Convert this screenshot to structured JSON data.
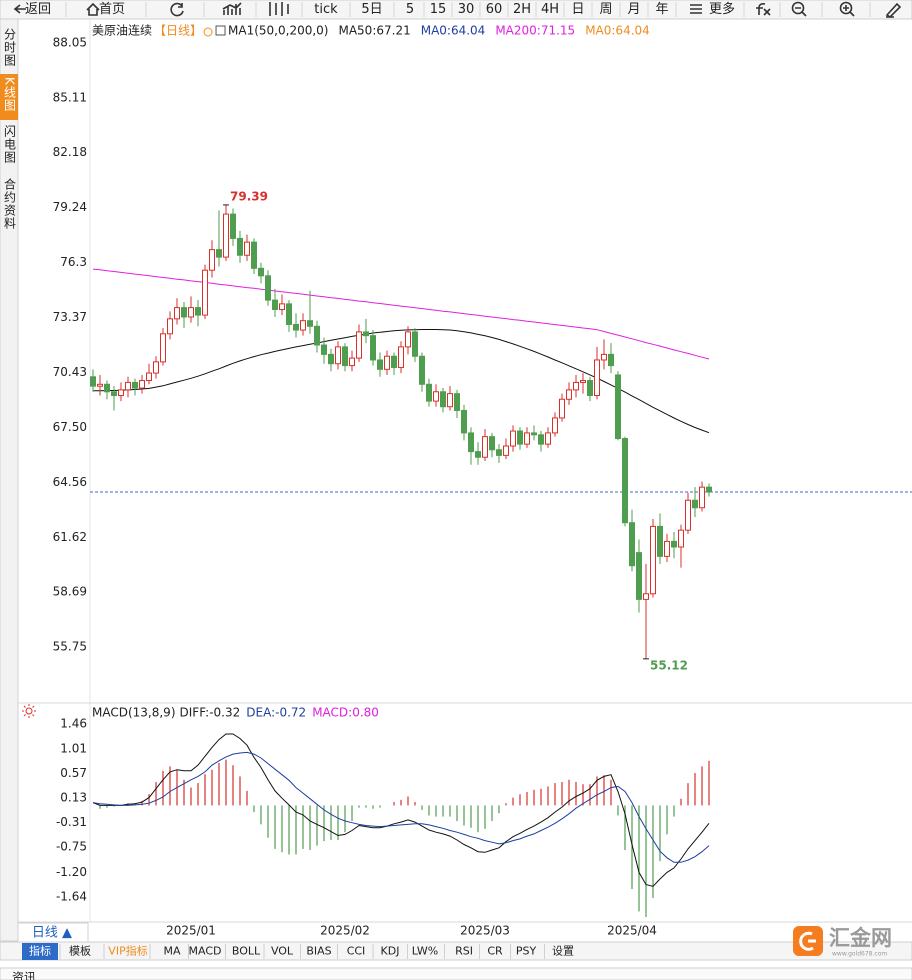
{
  "toolbar": [
    "返回",
    "首页",
    "tick",
    "5日",
    "5",
    "15",
    "30",
    "60",
    "2H",
    "4H",
    "日",
    "周",
    "月",
    "年",
    "更多"
  ],
  "sidebar": [
    "分时图",
    "K线图",
    "闪电图",
    "合约资料"
  ],
  "chart_data": {
    "type": "candlestick",
    "title": "美原油连续",
    "period": "【日线】",
    "legend": [
      {
        "text": "MA1(50,0,200,0)",
        "color": "#222222"
      },
      {
        "text": "MA50:67.21",
        "color": "#222222"
      },
      {
        "text": "MA0:64.04",
        "color": "#1f3fa0"
      },
      {
        "text": "MA200:71.15",
        "color": "#e020e0"
      },
      {
        "text": "MA0:64.04",
        "color": "#f08c1e"
      }
    ],
    "categories": [
      null,
      null,
      null,
      null,
      null,
      null,
      null,
      null,
      null,
      null,
      null,
      null,
      null,
      null,
      "2025/01",
      null,
      null,
      null,
      null,
      null,
      null,
      null,
      null,
      null,
      null,
      null,
      null,
      null,
      null,
      null,
      null,
      null,
      null,
      null,
      null,
      null,
      "2025/02",
      null,
      null,
      null,
      null,
      null,
      null,
      null,
      null,
      null,
      null,
      null,
      null,
      null,
      null,
      null,
      null,
      null,
      null,
      null,
      "2025/03",
      null,
      null,
      null,
      null,
      null,
      null,
      null,
      null,
      null,
      null,
      null,
      null,
      null,
      null,
      null,
      null,
      null,
      null,
      null,
      null,
      "2025/04",
      null,
      null,
      null,
      null,
      null,
      null,
      null,
      null,
      null,
      null,
      null
    ],
    "ohlc": {
      "open": [
        70.2,
        69.7,
        69.8,
        69.4,
        69.2,
        69.5,
        69.9,
        69.6,
        70.0,
        70.4,
        71.0,
        72.5,
        73.3,
        73.9,
        73.4,
        73.9,
        73.5,
        75.9,
        77.0,
        76.6,
        78.9,
        77.6,
        76.7,
        77.4,
        76.0,
        75.6,
        74.3,
        73.8,
        74.1,
        73.0,
        72.7,
        73.2,
        72.9,
        71.9,
        71.4,
        70.9,
        71.8,
        70.8,
        71.2,
        72.6,
        72.4,
        71.1,
        70.6,
        71.3,
        70.7,
        71.8,
        72.6,
        71.3,
        69.8,
        68.9,
        69.4,
        68.6,
        69.3,
        68.4,
        67.2,
        66.2,
        65.9,
        67.0,
        66.3,
        66.0,
        66.5,
        67.3,
        66.6,
        67.2,
        67.1,
        66.6,
        67.2,
        68.0,
        69.0,
        69.5,
        69.9,
        70.0,
        69.2,
        71.1,
        71.4,
        70.3,
        66.9,
        62.4,
        60.8,
        58.3,
        58.6,
        62.2,
        60.6,
        61.4,
        61.1,
        62.0,
        63.6,
        63.2,
        64.3
      ],
      "high": [
        70.6,
        70.3,
        70.0,
        69.7,
        69.9,
        70.2,
        70.1,
        70.3,
        70.9,
        71.3,
        72.8,
        73.7,
        74.4,
        74.2,
        74.5,
        74.3,
        76.2,
        77.5,
        79.1,
        79.39,
        79.2,
        78.0,
        77.8,
        77.6,
        76.3,
        75.9,
        74.9,
        74.6,
        74.3,
        73.6,
        73.6,
        74.8,
        73.2,
        72.3,
        71.7,
        72.1,
        72.0,
        71.6,
        73.0,
        73.3,
        72.7,
        71.5,
        71.6,
        71.5,
        72.1,
        72.9,
        72.8,
        71.5,
        70.1,
        69.8,
        69.6,
        69.7,
        69.5,
        68.7,
        67.5,
        66.7,
        67.4,
        67.2,
        66.6,
        66.9,
        67.6,
        67.5,
        67.5,
        67.6,
        67.3,
        67.5,
        68.3,
        69.3,
        69.9,
        70.3,
        70.4,
        70.2,
        71.8,
        72.2,
        72.0,
        70.5,
        67.0,
        63.1,
        61.5,
        60.2,
        62.6,
        62.9,
        61.8,
        61.9,
        62.3,
        64.0,
        64.3,
        64.6,
        64.5
      ],
      "low": [
        69.4,
        69.2,
        69.0,
        68.4,
        68.9,
        69.1,
        69.2,
        69.3,
        69.8,
        70.1,
        70.8,
        72.2,
        73.0,
        72.8,
        73.1,
        72.9,
        73.3,
        75.5,
        76.1,
        76.4,
        77.2,
        76.3,
        76.4,
        75.7,
        75.2,
        74.0,
        73.4,
        73.5,
        72.6,
        72.3,
        72.4,
        72.5,
        71.5,
        70.9,
        70.5,
        70.6,
        70.5,
        70.5,
        71.0,
        72.0,
        70.8,
        70.2,
        70.3,
        70.3,
        70.4,
        71.4,
        71.0,
        69.4,
        68.6,
        68.6,
        68.3,
        68.4,
        68.0,
        66.8,
        65.5,
        65.5,
        65.7,
        65.9,
        65.6,
        65.8,
        66.2,
        66.3,
        66.4,
        66.8,
        66.2,
        66.4,
        67.0,
        67.8,
        68.7,
        69.1,
        69.3,
        68.9,
        69.0,
        70.6,
        70.4,
        66.8,
        62.2,
        59.8,
        57.6,
        55.12,
        58.4,
        60.2,
        60.3,
        60.5,
        60.0,
        61.8,
        62.7,
        63.0,
        63.8
      ],
      "close": [
        69.7,
        69.8,
        69.4,
        69.2,
        69.5,
        69.9,
        69.6,
        70.0,
        70.4,
        71.0,
        72.5,
        73.3,
        73.9,
        73.4,
        73.9,
        73.5,
        75.9,
        77.0,
        76.6,
        78.9,
        77.6,
        76.7,
        77.4,
        76.0,
        75.6,
        74.3,
        73.8,
        74.1,
        73.0,
        72.7,
        73.2,
        72.9,
        71.9,
        71.4,
        70.9,
        71.8,
        70.8,
        71.2,
        72.6,
        72.4,
        71.1,
        70.6,
        71.3,
        70.7,
        71.8,
        72.6,
        71.3,
        69.8,
        68.9,
        69.4,
        68.6,
        69.3,
        68.4,
        67.2,
        66.2,
        65.9,
        67.0,
        66.3,
        66.0,
        66.5,
        67.3,
        66.6,
        67.2,
        67.1,
        66.6,
        67.2,
        68.0,
        69.0,
        69.5,
        69.9,
        70.0,
        69.2,
        71.1,
        71.4,
        70.8,
        66.9,
        62.4,
        60.1,
        58.3,
        58.6,
        62.2,
        60.6,
        61.4,
        61.1,
        62.0,
        63.6,
        63.2,
        64.3,
        64.04
      ]
    },
    "up_color": "#d9302c",
    "down_color": "#4f9d4f",
    "series": [
      {
        "color": "#111111",
        "values": [
          69.45,
          69.45,
          69.46,
          69.47,
          69.48,
          69.5,
          69.52,
          69.55,
          69.58,
          69.65,
          69.72,
          69.82,
          69.92,
          70.02,
          70.12,
          70.23,
          70.36,
          70.5,
          70.63,
          70.78,
          70.92,
          71.05,
          71.17,
          71.28,
          71.38,
          71.47,
          71.56,
          71.64,
          71.72,
          71.8,
          71.87,
          71.94,
          72.01,
          72.08,
          72.15,
          72.22,
          72.29,
          72.36,
          72.42,
          72.48,
          72.54,
          72.58,
          72.62,
          72.66,
          72.69,
          72.71,
          72.72,
          72.73,
          72.73,
          72.73,
          72.72,
          72.7,
          72.66,
          72.61,
          72.55,
          72.47,
          72.39,
          72.3,
          72.2,
          72.08,
          71.96,
          71.83,
          71.7,
          71.56,
          71.41,
          71.26,
          71.1,
          70.95,
          70.79,
          70.63,
          70.47,
          70.3,
          70.13,
          69.95,
          69.77,
          69.58,
          69.38,
          69.18,
          68.98,
          68.78,
          68.57,
          68.38,
          68.19,
          68.0,
          67.82,
          67.65,
          67.49,
          67.35,
          67.21
        ]
      },
      {
        "color": "#e020e0",
        "values": [
          75.96,
          75.92,
          75.87,
          75.83,
          75.78,
          75.74,
          75.69,
          75.65,
          75.6,
          75.56,
          75.51,
          75.47,
          75.42,
          75.38,
          75.33,
          75.29,
          75.24,
          75.2,
          75.15,
          75.11,
          75.06,
          75.02,
          74.97,
          74.93,
          74.88,
          74.84,
          74.79,
          74.75,
          74.7,
          74.66,
          74.61,
          74.57,
          74.52,
          74.48,
          74.43,
          74.39,
          74.34,
          74.3,
          74.25,
          74.21,
          74.16,
          74.12,
          74.07,
          74.03,
          73.98,
          73.94,
          73.89,
          73.85,
          73.8,
          73.76,
          73.71,
          73.67,
          73.62,
          73.58,
          73.53,
          73.49,
          73.44,
          73.4,
          73.35,
          73.31,
          73.26,
          73.22,
          73.17,
          73.13,
          73.08,
          73.04,
          72.99,
          72.95,
          72.9,
          72.86,
          72.81,
          72.77,
          72.72,
          72.62,
          72.52,
          72.43,
          72.33,
          72.23,
          72.13,
          72.03,
          71.94,
          71.84,
          71.74,
          71.64,
          71.54,
          71.45,
          71.35,
          71.25,
          71.15
        ]
      }
    ],
    "price_line_color": "#3b6fc4",
    "ylim": [
      52.92,
      89.01
    ],
    "yticks": [
      55.75,
      58.69,
      61.62,
      64.56,
      {
        "value": 67.5,
        "label": "67.50"
      },
      70.43,
      73.37,
      76.3,
      79.24,
      82.18,
      85.11,
      88.05
    ],
    "macd": {
      "title": "MACD(13,8,9)",
      "legend": [
        {
          "text": "DIFF:-0.32",
          "color": "#222222"
        },
        {
          "text": "DEA:-0.72",
          "color": "#1f3fa0"
        },
        {
          "text": "MACD:0.80",
          "color": "#e020e0"
        }
      ],
      "ylim": [
        -2.09,
        1.8
      ],
      "yticks": [
        1.46,
        1.01,
        0.57,
        0.13,
        -0.31,
        -0.75,
        {
          "value": -1.2,
          "label": "-1.20"
        },
        -1.64
      ],
      "diff": {
        "color": "#111111",
        "values": [
          0.05,
          0,
          0,
          0,
          0,
          0.02,
          0.03,
          0.06,
          0.14,
          0.3,
          0.46,
          0.6,
          0.64,
          0.62,
          0.62,
          0.72,
          0.88,
          1.04,
          1.18,
          1.28,
          1.28,
          1.2,
          1.08,
          0.86,
          0.68,
          0.46,
          0.26,
          0.13,
          0.01,
          -0.12,
          -0.17,
          -0.28,
          -0.34,
          -0.4,
          -0.47,
          -0.54,
          -0.52,
          -0.45,
          -0.36,
          -0.38,
          -0.4,
          -0.4,
          -0.37,
          -0.33,
          -0.3,
          -0.26,
          -0.3,
          -0.37,
          -0.44,
          -0.48,
          -0.51,
          -0.55,
          -0.62,
          -0.7,
          -0.76,
          -0.83,
          -0.84,
          -0.8,
          -0.76,
          -0.65,
          -0.56,
          -0.5,
          -0.43,
          -0.37,
          -0.3,
          -0.22,
          -0.12,
          -0.03,
          0.08,
          0.16,
          0.22,
          0.3,
          0.45,
          0.52,
          0.55,
          0.25,
          -0.15,
          -0.7,
          -1.2,
          -1.42,
          -1.45,
          -1.32,
          -1.2,
          -1.12,
          -0.96,
          -0.78,
          -0.63,
          -0.48,
          -0.32
        ]
      },
      "dea": {
        "color": "#1f3fa0",
        "values": [
          0.05,
          0.03,
          0.02,
          0.01,
          0,
          0,
          0.01,
          0.02,
          0.04,
          0.09,
          0.15,
          0.25,
          0.32,
          0.39,
          0.46,
          0.52,
          0.6,
          0.72,
          0.8,
          0.87,
          0.92,
          0.94,
          0.95,
          0.92,
          0.85,
          0.75,
          0.65,
          0.55,
          0.45,
          0.32,
          0.22,
          0.12,
          0.02,
          -0.08,
          -0.16,
          -0.23,
          -0.28,
          -0.31,
          -0.34,
          -0.36,
          -0.37,
          -0.38,
          -0.37,
          -0.36,
          -0.35,
          -0.34,
          -0.33,
          -0.33,
          -0.35,
          -0.38,
          -0.41,
          -0.45,
          -0.48,
          -0.52,
          -0.56,
          -0.59,
          -0.63,
          -0.66,
          -0.69,
          -0.67,
          -0.63,
          -0.6,
          -0.55,
          -0.51,
          -0.45,
          -0.39,
          -0.32,
          -0.24,
          -0.15,
          -0.05,
          0.03,
          0.11,
          0.19,
          0.25,
          0.32,
          0.34,
          0.25,
          0.05,
          -0.2,
          -0.42,
          -0.62,
          -0.82,
          -0.94,
          -1.02,
          -1.02,
          -0.98,
          -0.92,
          -0.83,
          -0.72
        ]
      },
      "hist": {
        "up_color": "#d9302c",
        "down_color": "#4f9d4f",
        "values": [
          0,
          -0.06,
          -0.04,
          -0.02,
          0,
          0.04,
          0.04,
          0.08,
          0.2,
          0.42,
          0.62,
          0.7,
          0.64,
          0.46,
          0.32,
          0.4,
          0.56,
          0.64,
          0.76,
          0.82,
          0.72,
          0.52,
          0.26,
          -0.12,
          -0.34,
          -0.58,
          -0.78,
          -0.84,
          -0.88,
          -0.88,
          -0.78,
          -0.8,
          -0.72,
          -0.64,
          -0.62,
          -0.62,
          -0.48,
          -0.28,
          -0.04,
          -0.04,
          -0.06,
          -0.04,
          0,
          0.06,
          0.1,
          0.16,
          0.06,
          -0.08,
          -0.18,
          -0.2,
          -0.2,
          -0.2,
          -0.28,
          -0.36,
          -0.4,
          -0.48,
          -0.42,
          -0.28,
          -0.14,
          0.04,
          0.14,
          0.2,
          0.24,
          0.28,
          0.3,
          0.34,
          0.4,
          0.42,
          0.46,
          0.42,
          0.38,
          0.38,
          0.52,
          0.54,
          0.46,
          -0.18,
          -0.8,
          -1.5,
          -1.9,
          -2.0,
          -1.66,
          -1.0,
          -0.52,
          -0.2,
          0.12,
          0.4,
          0.58,
          0.7,
          0.8
        ]
      }
    },
    "period_tab": "日线 ▲"
  },
  "indicator_tabs": [
    "指标",
    "模板",
    "VIP指标",
    "MA",
    "MACD",
    "BOLL",
    "VOL",
    "BIAS",
    "CCI",
    "KDJ",
    "LW%",
    "RSI",
    "CR",
    "PSY",
    "设置"
  ],
  "logo": {
    "name": "汇金网",
    "url": "www.gold678.com"
  },
  "footer": "资讯"
}
